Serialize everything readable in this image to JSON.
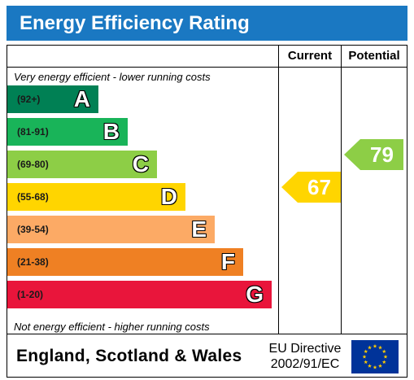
{
  "title": "Energy Efficiency Rating",
  "columns": {
    "current": "Current",
    "potential": "Potential"
  },
  "notes": {
    "top": "Very energy efficient - lower running costs",
    "bottom": "Not energy efficient - higher running costs"
  },
  "bands": [
    {
      "range": "(92+)",
      "letter": "A",
      "color": "#008054"
    },
    {
      "range": "(81-91)",
      "letter": "B",
      "color": "#19b459"
    },
    {
      "range": "(69-80)",
      "letter": "C",
      "color": "#8dce46"
    },
    {
      "range": "(55-68)",
      "letter": "D",
      "color": "#ffd500"
    },
    {
      "range": "(39-54)",
      "letter": "E",
      "color": "#fcaa65"
    },
    {
      "range": "(21-38)",
      "letter": "F",
      "color": "#ef8023"
    },
    {
      "range": "(1-20)",
      "letter": "G",
      "color": "#e9153b"
    }
  ],
  "current": {
    "value": "67",
    "band": "D",
    "color": "#ffd500"
  },
  "potential": {
    "value": "79",
    "band": "C",
    "color": "#8dce46"
  },
  "footer": {
    "region": "England, Scotland & Wales",
    "directive_line1": "EU Directive",
    "directive_line2": "2002/91/EC"
  },
  "colors": {
    "header": "#1a78c2",
    "eu_flag": "#003399",
    "eu_stars": "#ffcc00"
  }
}
